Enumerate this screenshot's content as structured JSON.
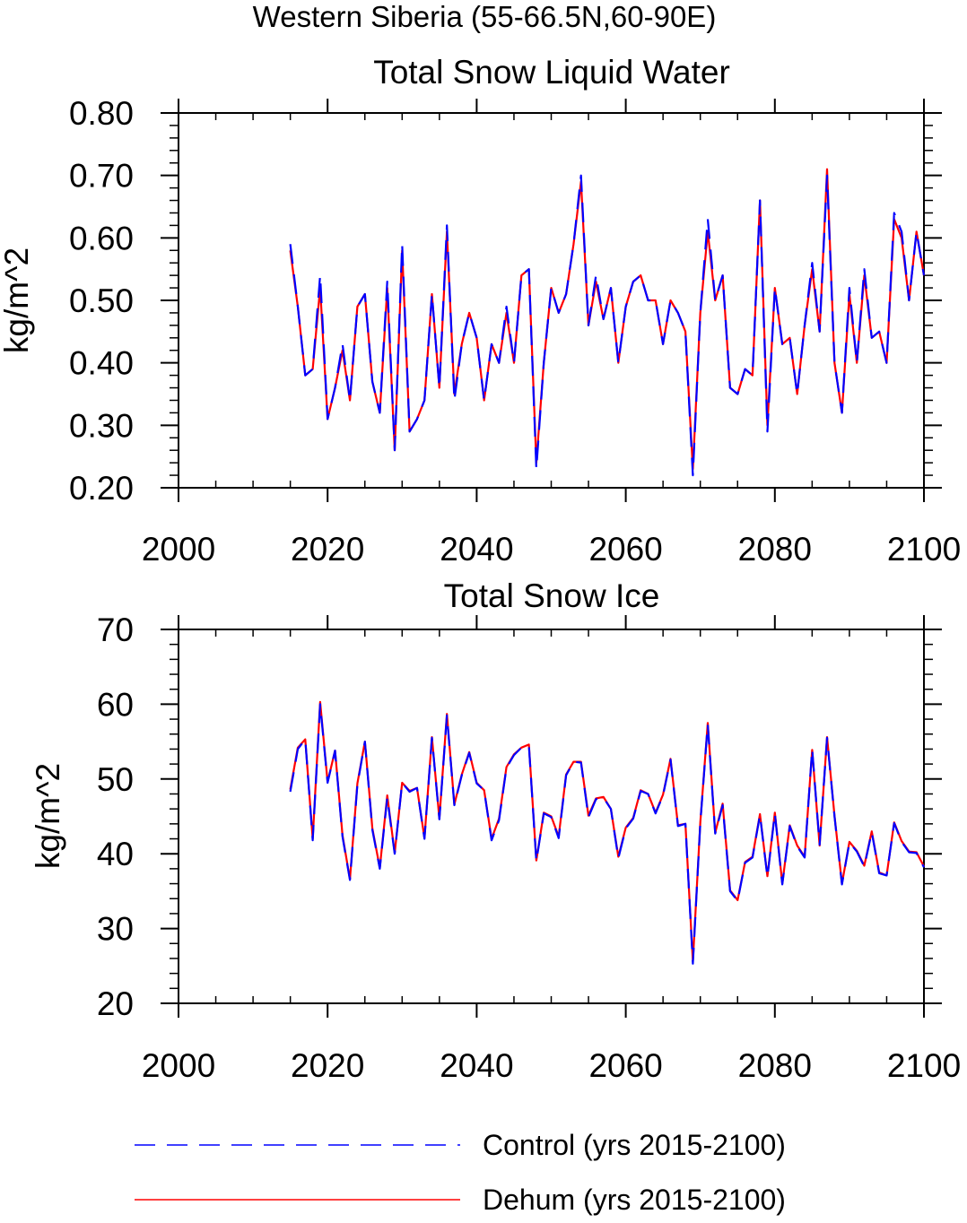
{
  "page_title": "Western Siberia (55-66.5N,60-90E)",
  "legend": [
    {
      "label": "Control (yrs 2015-2100)",
      "color": "#0000ff",
      "dash": "dashed"
    },
    {
      "label": "Dehum (yrs 2015-2100)",
      "color": "#ff0000",
      "dash": "solid"
    }
  ],
  "chart_data": [
    {
      "type": "line",
      "title": "Total Snow Liquid Water",
      "ylabel": "kg/m^2",
      "xlabel": "",
      "xlim": [
        2000,
        2100
      ],
      "ylim": [
        0.2,
        0.8
      ],
      "xticks": [
        2000,
        2020,
        2040,
        2060,
        2080,
        2100
      ],
      "yticks": [
        "0.20",
        "0.30",
        "0.40",
        "0.50",
        "0.60",
        "0.70",
        "0.80"
      ],
      "x_start": 2015,
      "grid": false,
      "series": [
        {
          "name": "Control (yrs 2015-2100)",
          "color": "#0000ff",
          "values": [
            0.59,
            0.49,
            0.38,
            0.39,
            0.54,
            0.31,
            0.36,
            0.43,
            0.34,
            0.49,
            0.51,
            0.37,
            0.32,
            0.53,
            0.26,
            0.59,
            0.29,
            0.31,
            0.34,
            0.51,
            0.36,
            0.62,
            0.34,
            0.43,
            0.48,
            0.44,
            0.34,
            0.43,
            0.4,
            0.49,
            0.4,
            0.54,
            0.55,
            0.23,
            0.4,
            0.52,
            0.48,
            0.51,
            0.59,
            0.7,
            0.46,
            0.54,
            0.47,
            0.52,
            0.4,
            0.49,
            0.53,
            0.54,
            0.5,
            0.5,
            0.43,
            0.5,
            0.48,
            0.45,
            0.22,
            0.48,
            0.63,
            0.5,
            0.54,
            0.36,
            0.35,
            0.39,
            0.38,
            0.66,
            0.29,
            0.52,
            0.43,
            0.44,
            0.35,
            0.46,
            0.56,
            0.45,
            0.7,
            0.4,
            0.32,
            0.52,
            0.4,
            0.55,
            0.44,
            0.45,
            0.4,
            0.64,
            0.61,
            0.5,
            0.61,
            0.54
          ]
        },
        {
          "name": "Dehum (yrs 2015-2100)",
          "color": "#ff0000",
          "values": [
            0.58,
            0.49,
            0.38,
            0.39,
            0.52,
            0.31,
            0.36,
            0.42,
            0.34,
            0.49,
            0.51,
            0.37,
            0.32,
            0.52,
            0.26,
            0.58,
            0.29,
            0.31,
            0.34,
            0.51,
            0.36,
            0.61,
            0.35,
            0.43,
            0.48,
            0.44,
            0.34,
            0.43,
            0.4,
            0.48,
            0.4,
            0.54,
            0.55,
            0.24,
            0.4,
            0.52,
            0.48,
            0.51,
            0.59,
            0.69,
            0.46,
            0.53,
            0.47,
            0.52,
            0.4,
            0.49,
            0.53,
            0.54,
            0.5,
            0.5,
            0.43,
            0.5,
            0.48,
            0.45,
            0.23,
            0.48,
            0.61,
            0.5,
            0.54,
            0.36,
            0.35,
            0.39,
            0.38,
            0.66,
            0.3,
            0.52,
            0.43,
            0.44,
            0.35,
            0.46,
            0.55,
            0.45,
            0.71,
            0.4,
            0.32,
            0.51,
            0.4,
            0.54,
            0.44,
            0.45,
            0.4,
            0.63,
            0.6,
            0.5,
            0.61,
            0.54
          ]
        }
      ]
    },
    {
      "type": "line",
      "title": "Total Snow Ice",
      "ylabel": "kg/m^2",
      "xlabel": "",
      "xlim": [
        2000,
        2100
      ],
      "ylim": [
        20,
        70
      ],
      "xticks": [
        2000,
        2020,
        2040,
        2060,
        2080,
        2100
      ],
      "yticks": [
        "20",
        "30",
        "40",
        "50",
        "60",
        "70"
      ],
      "x_start": 2015,
      "grid": false,
      "series": [
        {
          "name": "Control (yrs 2015-2100)",
          "color": "#0000ff",
          "values": [
            48.3,
            54.0,
            55.3,
            41.8,
            60.0,
            49.5,
            53.8,
            42.3,
            36.5,
            49.2,
            55.0,
            43.2,
            38.0,
            47.5,
            40.0,
            49.5,
            48.3,
            48.8,
            42.0,
            55.5,
            44.6,
            58.5,
            46.5,
            50.5,
            53.5,
            49.4,
            48.5,
            41.8,
            44.5,
            51.5,
            53.2,
            54.2,
            54.5,
            39.0,
            45.4,
            44.9,
            42.1,
            50.5,
            52.3,
            52.2,
            44.9,
            47.3,
            47.5,
            46.0,
            39.4,
            43.4,
            44.7,
            48.4,
            48.0,
            45.4,
            47.8,
            52.6,
            43.7,
            44.0,
            25.3,
            44.1,
            57.3,
            42.7,
            46.5,
            35.0,
            33.7,
            38.8,
            39.5,
            45.2,
            36.9,
            45.4,
            35.9,
            43.7,
            41.0,
            39.5,
            54.0,
            41.2,
            55.5,
            45.0,
            35.9,
            41.5,
            40.3,
            38.3,
            42.9,
            37.4,
            37.1,
            44.1,
            41.6,
            40.2,
            40.1,
            38.2
          ]
        },
        {
          "name": "Dehum (yrs 2015-2100)",
          "color": "#ff0000",
          "values": [
            48.6,
            54.2,
            55.3,
            42.0,
            60.3,
            49.6,
            53.8,
            42.5,
            36.6,
            49.4,
            55.0,
            43.4,
            38.1,
            47.8,
            40.1,
            49.5,
            48.4,
            48.8,
            42.1,
            55.6,
            44.7,
            58.7,
            46.6,
            50.6,
            53.6,
            49.5,
            48.5,
            42.0,
            44.7,
            51.6,
            53.3,
            54.2,
            54.6,
            39.1,
            45.5,
            45.0,
            42.3,
            50.6,
            52.3,
            52.3,
            45.1,
            47.4,
            47.6,
            46.0,
            39.6,
            43.5,
            44.8,
            48.5,
            48.0,
            45.5,
            47.9,
            52.7,
            43.8,
            44.0,
            25.6,
            44.2,
            57.5,
            42.8,
            46.7,
            35.1,
            33.8,
            38.9,
            39.6,
            45.3,
            37.0,
            45.5,
            36.0,
            43.8,
            41.1,
            39.6,
            53.9,
            41.1,
            55.6,
            45.1,
            36.0,
            41.6,
            40.4,
            38.4,
            43.0,
            37.5,
            37.1,
            44.2,
            41.7,
            40.3,
            40.2,
            38.3
          ]
        }
      ]
    }
  ]
}
